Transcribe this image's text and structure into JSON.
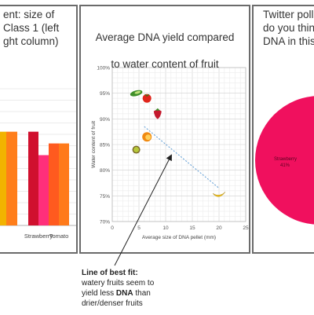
{
  "left_panel": {
    "title": "ent: size of\nClass 1 (left\nght column)",
    "chart_data": {
      "type": "bar",
      "categories": [
        "",
        "Strawberry",
        "Tomato"
      ],
      "series": [
        {
          "values": [
            40,
            40,
            35
          ],
          "color": "#e8005a"
        },
        {
          "values": [
            40,
            30,
            35
          ],
          "color": "#ff8a00"
        }
      ],
      "first_bar_only_second_series": true,
      "colors": {
        "a": "#e8005a",
        "b": "#ff8a00",
        "c": "#f0c000",
        "d": "#ff6f3c"
      }
    }
  },
  "mid_panel": {
    "title_line1": "Average DNA yield compared",
    "title_line2": "to water content of fruit",
    "chart_data": {
      "type": "scatter",
      "title": "Average DNA yield compared to water content of fruit",
      "xlabel": "Average size of DNA pellet (mm)",
      "ylabel": "Water content of fruit",
      "xlim": [
        0,
        25
      ],
      "ylim": [
        70,
        100
      ],
      "x_ticks": [
        "0",
        "5",
        "10",
        "15",
        "20",
        "25"
      ],
      "y_ticks": [
        "70%",
        "75%",
        "80%",
        "85%",
        "90%",
        "95%",
        "100%"
      ],
      "points": [
        {
          "name": "cucumber",
          "x": 4.5,
          "y": 95,
          "color": "#3f8f2a"
        },
        {
          "name": "tomato",
          "x": 6.5,
          "y": 94,
          "color": "#e0251b"
        },
        {
          "name": "strawberry",
          "x": 8.5,
          "y": 91,
          "color": "#c41a2e"
        },
        {
          "name": "orange",
          "x": 6.5,
          "y": 86.5,
          "color": "#f08a12"
        },
        {
          "name": "kiwi",
          "x": 4.5,
          "y": 84,
          "color": "#8a9a2a"
        },
        {
          "name": "banana",
          "x": 20,
          "y": 75,
          "color": "#f2c21a"
        }
      ],
      "trendline": {
        "x1": 6,
        "y1": 88.5,
        "x2": 20,
        "y2": 76.5
      },
      "grid": true
    }
  },
  "right_panel": {
    "title": "Twitter poll\ndo you thin\nDNA in this",
    "chart_data": {
      "type": "pie",
      "slices": [
        {
          "label": "Strawberry",
          "value_label": "41%",
          "value": 41,
          "color": "#f0105e"
        }
      ]
    }
  },
  "annotation": {
    "lead": "Line of best fit:",
    "line2": "watery fruits seem to",
    "line3_pre": "yield less ",
    "line3_bold": "DNA",
    "line3_post": " than",
    "line4": "drier/denser fruits"
  }
}
